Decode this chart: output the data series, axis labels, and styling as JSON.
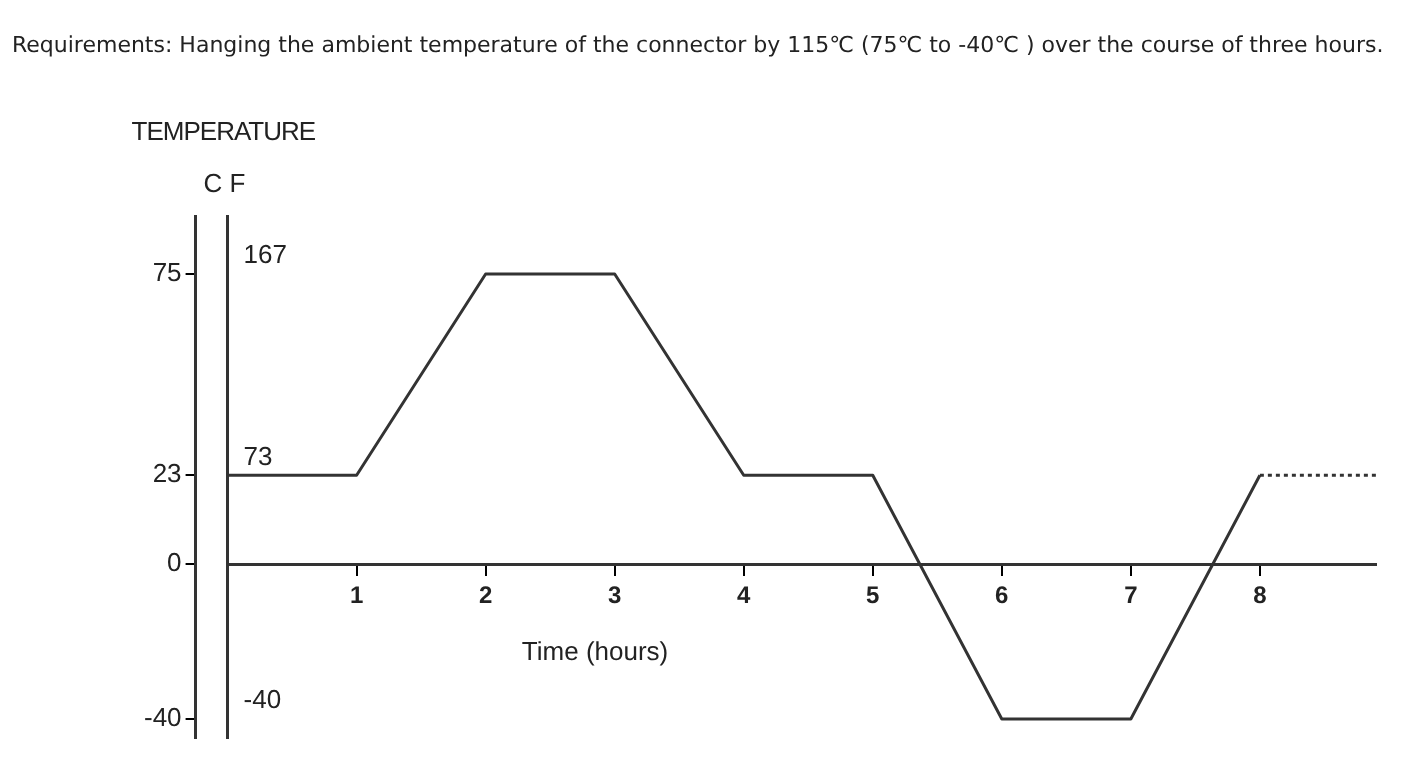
{
  "chart_data": {
    "type": "line",
    "title": "Requirements: Hanging the ambient temperature of the connector by 115℃ (75℃ to -40℃ ) over the course of three hours.",
    "xlabel": "Time (hours)",
    "ylabel": "C",
    "y2label": "F",
    "annotations": [
      "TEMPERATURE"
    ],
    "series": [
      {
        "color": "#333333",
        "x": [
          0,
          1,
          2,
          3,
          4,
          5,
          6,
          7,
          8
        ],
        "values": [
          23,
          23,
          75,
          75,
          23,
          23,
          -40,
          -40,
          23
        ],
        "line_style": "solid"
      },
      {
        "color": "#333333",
        "x": [
          8,
          8.9
        ],
        "values": [
          23,
          23
        ],
        "line_style": "dotted"
      }
    ],
    "xlim": [
      0,
      8.9
    ],
    "xticks": [
      1,
      2,
      3,
      4,
      5,
      6,
      7,
      8
    ],
    "ylim": [
      -45,
      90
    ],
    "yticks": [
      75,
      23,
      0,
      -40
    ],
    "y2lim": [
      -49,
      194
    ],
    "y2ticks": [
      167,
      73,
      -40
    ],
    "grid": false,
    "legend": false,
    "marker": "none"
  }
}
